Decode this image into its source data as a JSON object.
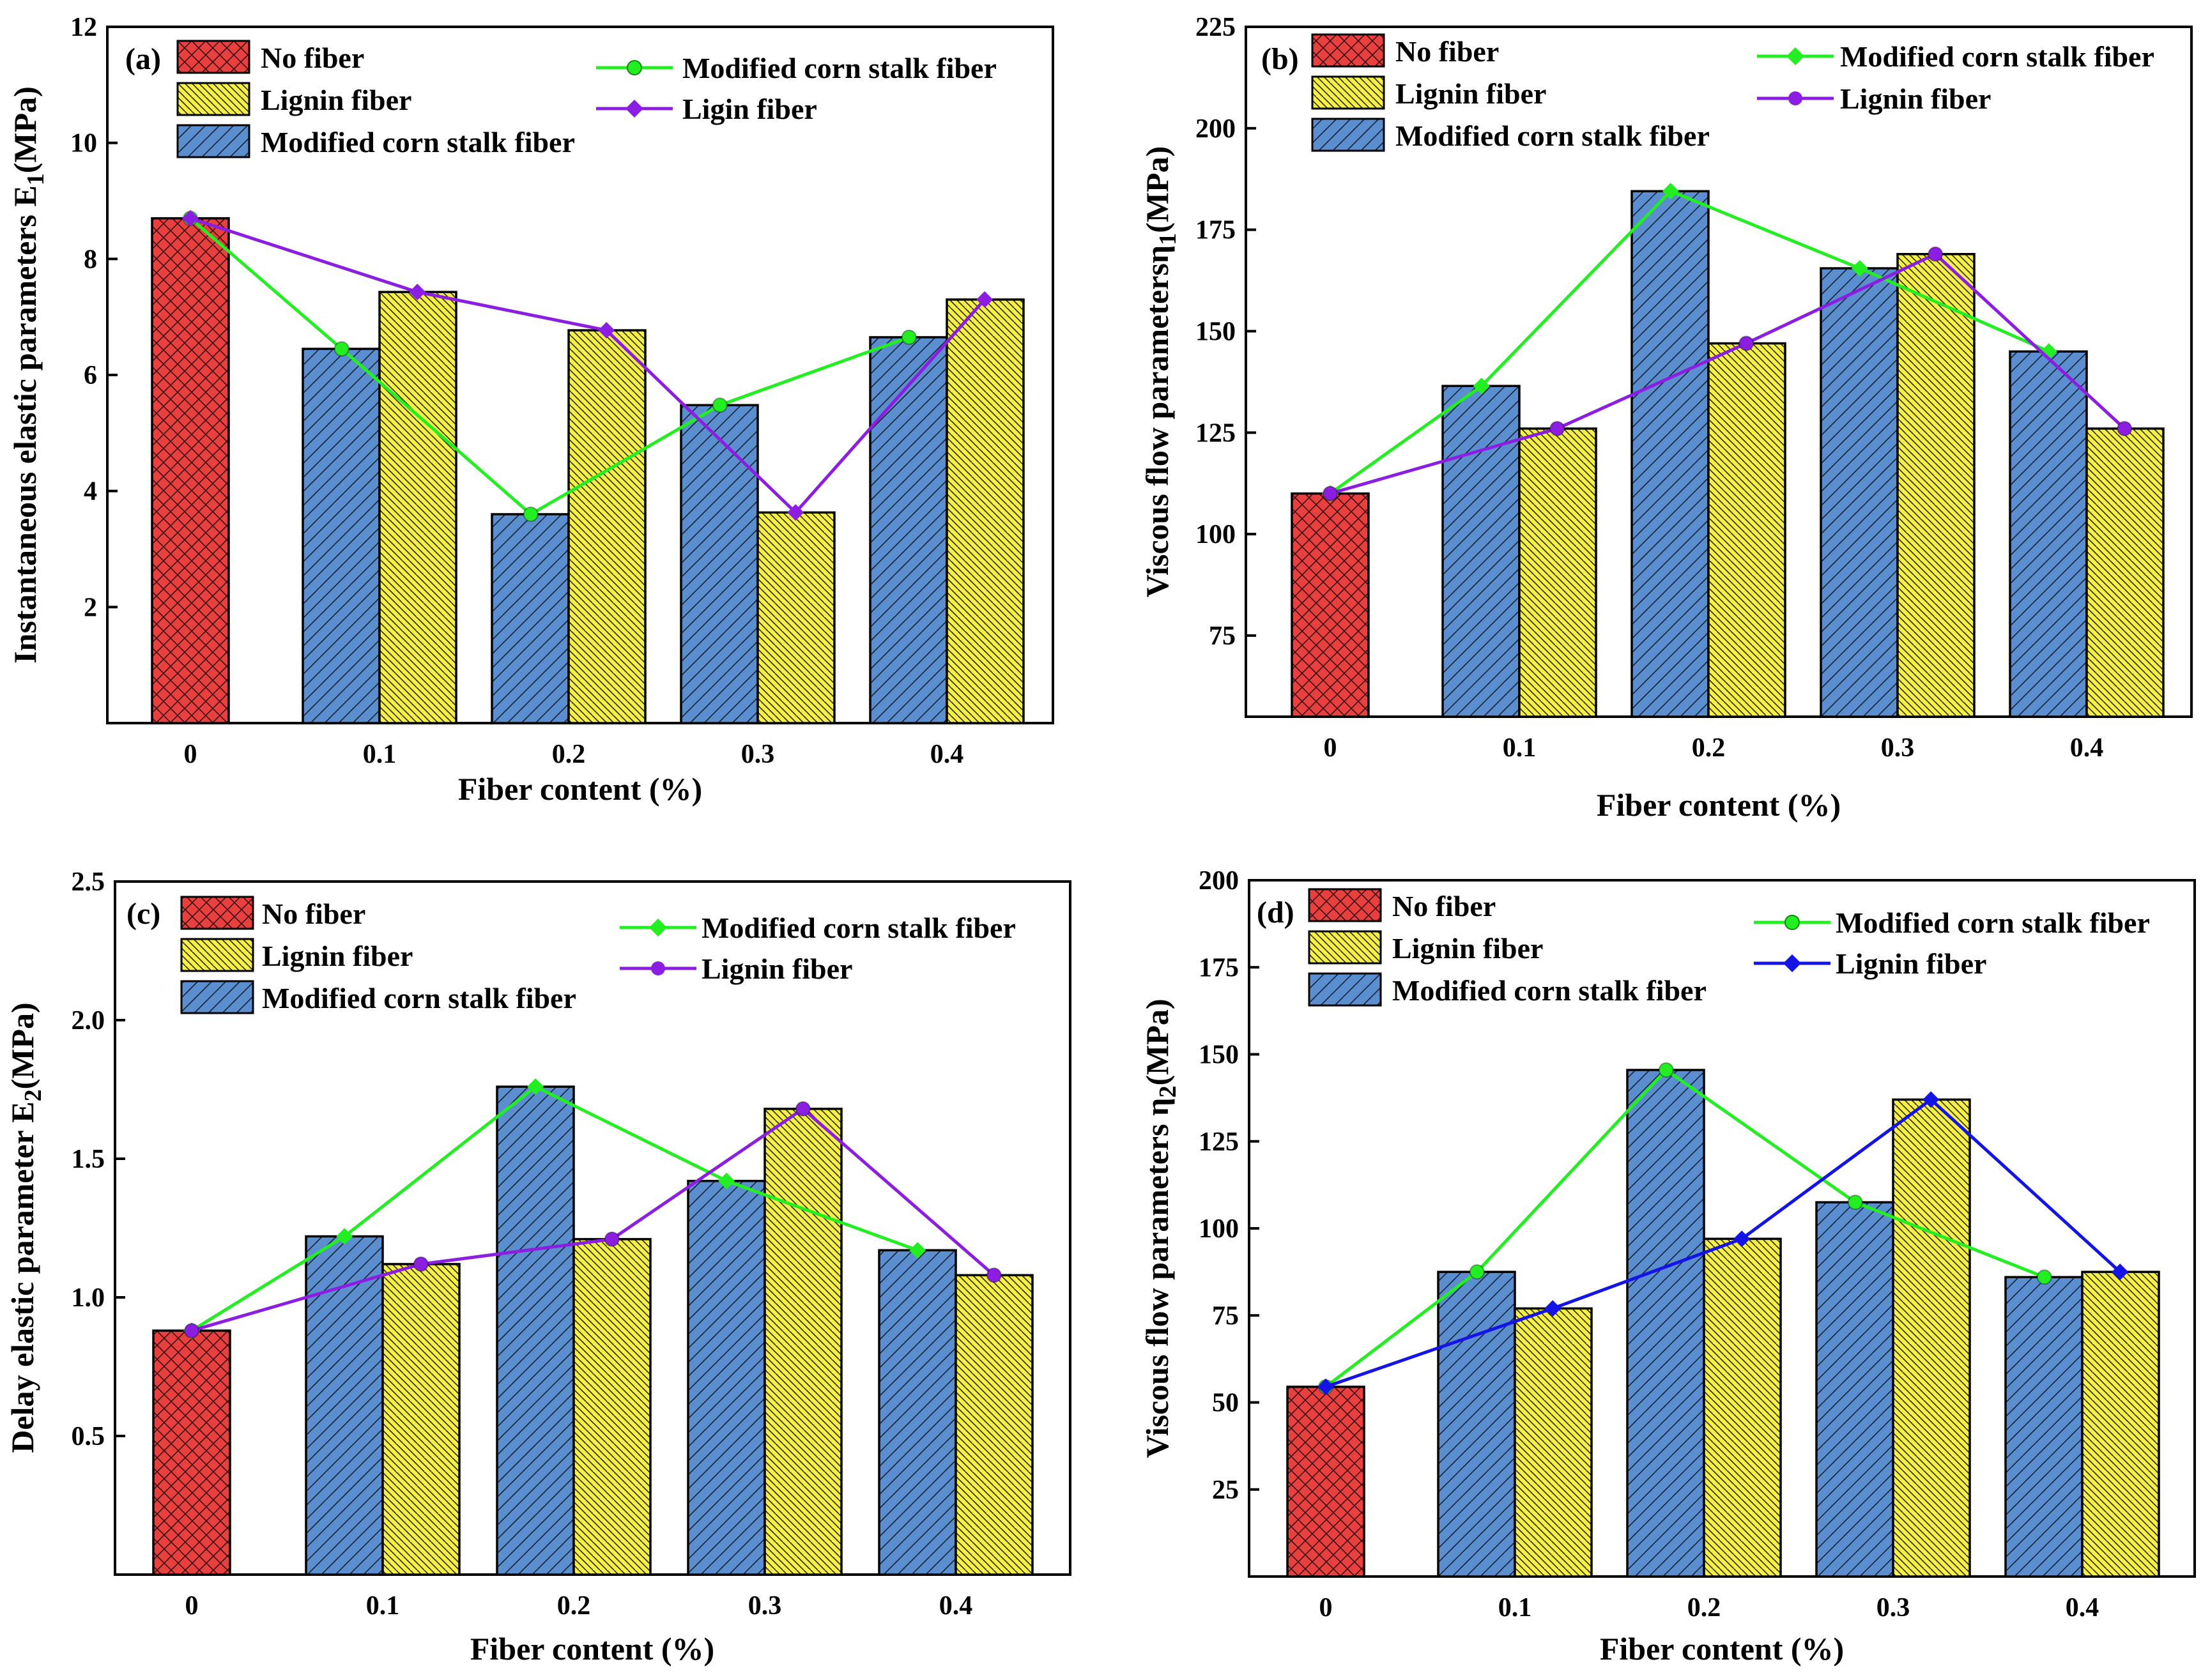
{
  "figure": {
    "colors": {
      "no_fiber": "#e8403f",
      "lignin_bar": "#f5ef48",
      "corn_bar": "#5b8ece",
      "green_line": "#22ee22",
      "purple_line": "#8c1ee2",
      "blue_line": "#1414e6"
    }
  },
  "chart_data": [
    {
      "panel_label": "(a)",
      "type": "bar",
      "xlabel": "Fiber content (%)",
      "ylabel": "Instantaneous elastic parameters E",
      "ylabel_sub": "1",
      "ylabel_suffix": "(MPa)",
      "ylim": [
        0,
        12
      ],
      "yticks": [
        2,
        4,
        6,
        8,
        10,
        12
      ],
      "categories": [
        "0",
        "0.1",
        "0.2",
        "0.3",
        "0.4"
      ],
      "bars": {
        "no_fiber": 8.7,
        "modified_corn_stalk_fiber": [
          6.45,
          3.6,
          5.48,
          6.65
        ],
        "lignin_fiber": [
          7.43,
          6.77,
          3.63,
          7.3
        ]
      },
      "legend_bars": [
        "No fiber",
        "Lignin fiber",
        "Modified corn stalk fiber"
      ],
      "lines": [
        {
          "name": "Modified corn stalk fiber",
          "color": "#22ee22",
          "marker": "circle",
          "x": [
            0,
            0.08,
            0.18,
            0.28,
            0.38
          ],
          "y": [
            8.7,
            6.45,
            3.6,
            5.48,
            6.65
          ]
        },
        {
          "name": "Ligin fiber",
          "color": "#8c1ee2",
          "marker": "diamond",
          "x": [
            0,
            0.12,
            0.22,
            0.32,
            0.42
          ],
          "y": [
            8.7,
            7.43,
            6.77,
            3.63,
            7.3
          ]
        }
      ]
    },
    {
      "panel_label": "(b)",
      "type": "bar",
      "xlabel": "Fiber content (%)",
      "ylabel": "Viscous flow parametersη",
      "ylabel_sub": "1",
      "ylabel_suffix": "(MPa)",
      "ylim": [
        55,
        225
      ],
      "yticks": [
        75,
        100,
        125,
        150,
        175,
        200,
        225
      ],
      "categories": [
        "0",
        "0.1",
        "0.2",
        "0.3",
        "0.4"
      ],
      "bars": {
        "no_fiber": 110,
        "modified_corn_stalk_fiber": [
          136.5,
          184.5,
          165.5,
          145
        ],
        "lignin_fiber": [
          126,
          147,
          169,
          126
        ]
      },
      "legend_bars": [
        "No fiber",
        "Lignin fiber",
        "Modified corn stalk fiber"
      ],
      "lines": [
        {
          "name": "Modified corn stalk fiber",
          "color": "#22ee22",
          "marker": "diamond",
          "x": [
            0,
            0.08,
            0.18,
            0.28,
            0.38
          ],
          "y": [
            110,
            136.5,
            184.5,
            165.5,
            145
          ]
        },
        {
          "name": "Lignin fiber",
          "color": "#8c1ee2",
          "marker": "circle",
          "x": [
            0,
            0.12,
            0.22,
            0.32,
            0.42
          ],
          "y": [
            110,
            126,
            147,
            169,
            126
          ]
        }
      ]
    },
    {
      "panel_label": "(c)",
      "type": "bar",
      "xlabel": "Fiber content (%)",
      "ylabel": "Delay elastic parameter E",
      "ylabel_sub": "2",
      "ylabel_suffix": "(MPa)",
      "ylim": [
        0,
        2.5
      ],
      "yticks": [
        0.5,
        1.0,
        1.5,
        2.0,
        2.5
      ],
      "ytick_labels": [
        "0.5",
        "1.0",
        "1.5",
        "2.0",
        "2.5"
      ],
      "categories": [
        "0",
        "0.1",
        "0.2",
        "0.3",
        "0.4"
      ],
      "bars": {
        "no_fiber": 0.88,
        "modified_corn_stalk_fiber": [
          1.22,
          1.76,
          1.42,
          1.17
        ],
        "lignin_fiber": [
          1.12,
          1.21,
          1.68,
          1.08
        ]
      },
      "legend_bars": [
        "No fiber",
        "Lignin fiber",
        "Modified corn stalk fiber"
      ],
      "lines": [
        {
          "name": "Modified corn stalk fiber",
          "color": "#22ee22",
          "marker": "diamond",
          "x": [
            0,
            0.08,
            0.18,
            0.28,
            0.38
          ],
          "y": [
            0.88,
            1.22,
            1.76,
            1.42,
            1.17
          ]
        },
        {
          "name": "Lignin fiber",
          "color": "#8c1ee2",
          "marker": "circle",
          "x": [
            0,
            0.12,
            0.22,
            0.32,
            0.42
          ],
          "y": [
            0.88,
            1.12,
            1.21,
            1.68,
            1.08
          ]
        }
      ]
    },
    {
      "panel_label": "(d)",
      "type": "bar",
      "xlabel": "Fiber content (%)",
      "ylabel": "Viscous flow parameters η",
      "ylabel_sub": "2",
      "ylabel_suffix": "(MPa)",
      "ylim": [
        0,
        200
      ],
      "yticks": [
        25,
        50,
        75,
        100,
        125,
        150,
        175,
        200
      ],
      "categories": [
        "0",
        "0.1",
        "0.2",
        "0.3",
        "0.4"
      ],
      "bars": {
        "no_fiber": 54.5,
        "modified_corn_stalk_fiber": [
          87.5,
          145.5,
          107.5,
          86
        ],
        "lignin_fiber": [
          77,
          97,
          137,
          87.5
        ]
      },
      "legend_bars": [
        "No fiber",
        "Lignin fiber",
        "Modified corn stalk fiber"
      ],
      "lines": [
        {
          "name": "Modified corn stalk fiber",
          "color": "#22ee22",
          "marker": "circle",
          "x": [
            0,
            0.08,
            0.18,
            0.28,
            0.38
          ],
          "y": [
            54.5,
            87.5,
            145.5,
            107.5,
            86
          ]
        },
        {
          "name": "Lignin fiber",
          "color": "#1414e6",
          "marker": "diamond",
          "x": [
            0,
            0.12,
            0.22,
            0.32,
            0.42
          ],
          "y": [
            54.5,
            77,
            97,
            137,
            87.5
          ]
        }
      ]
    }
  ]
}
